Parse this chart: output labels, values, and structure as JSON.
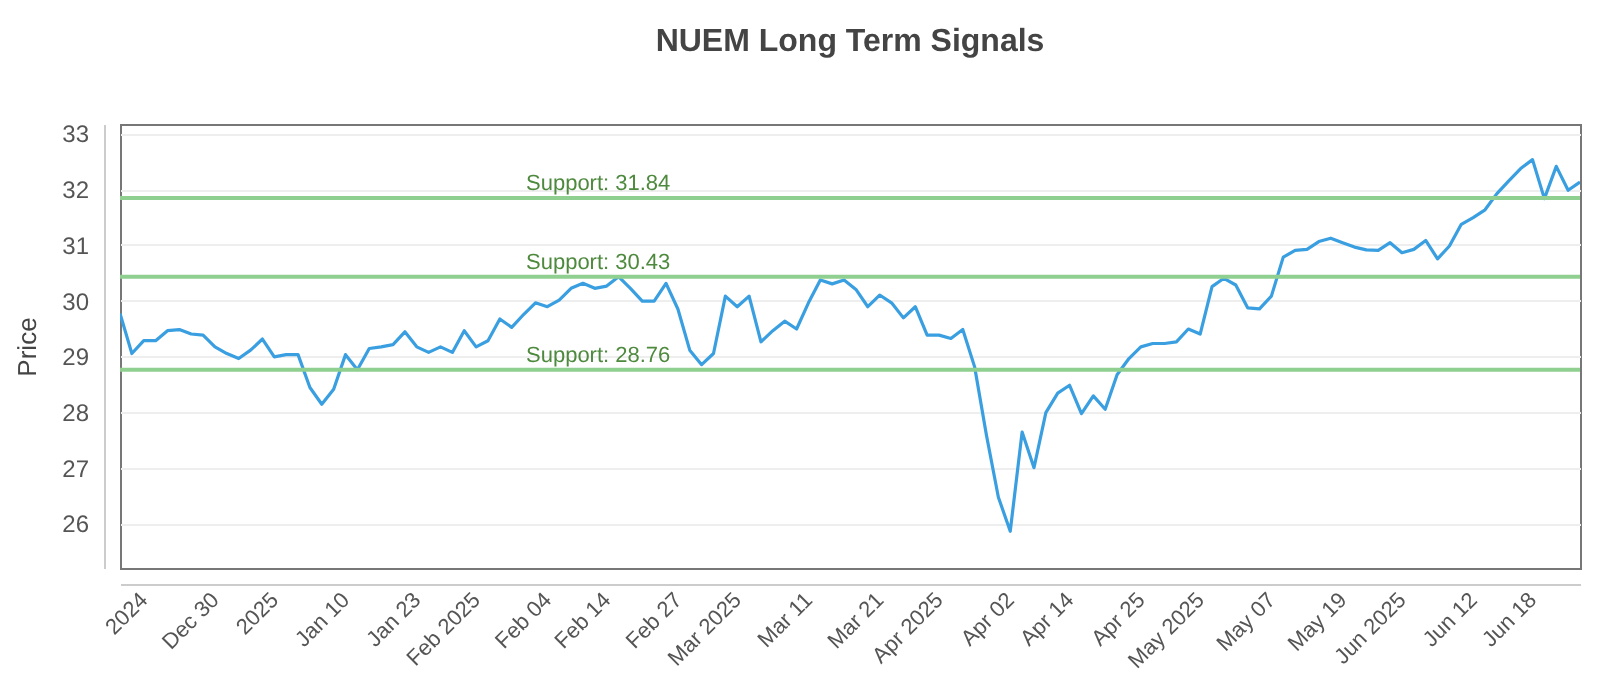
{
  "chart_data": {
    "type": "line",
    "title": "NUEM Long Term Signals",
    "ylabel": "Price",
    "categories": [
      null,
      null,
      "2024",
      null,
      null,
      null,
      null,
      null,
      "Dec 30",
      null,
      null,
      null,
      null,
      "2025",
      null,
      null,
      null,
      null,
      null,
      "Jan 10",
      null,
      null,
      null,
      null,
      null,
      "Jan 23",
      null,
      null,
      null,
      null,
      "Feb 2025",
      null,
      null,
      null,
      null,
      null,
      "Feb 04",
      null,
      null,
      null,
      null,
      "Feb 14",
      null,
      null,
      null,
      null,
      null,
      "Feb 27",
      null,
      null,
      null,
      null,
      "Mar 2025",
      null,
      null,
      null,
      null,
      null,
      "Mar 11",
      null,
      null,
      null,
      null,
      null,
      "Mar 21",
      null,
      null,
      null,
      null,
      "Apr 2025",
      null,
      null,
      null,
      null,
      null,
      "Apr 02",
      null,
      null,
      null,
      null,
      "Apr 14",
      null,
      null,
      null,
      null,
      null,
      "Apr 25",
      null,
      null,
      null,
      null,
      "May 2025",
      null,
      null,
      null,
      null,
      null,
      "May 07",
      null,
      null,
      null,
      null,
      null,
      "May 19",
      null,
      null,
      null,
      null,
      "Jun 2025",
      null,
      null,
      null,
      null,
      null,
      "Jun 12",
      null,
      null,
      null,
      null,
      "Jun 18",
      null,
      null,
      null,
      null
    ],
    "series": [
      {
        "color": "#3a9fe0",
        "values": [
          29.77,
          29.05,
          29.28,
          29.28,
          29.46,
          29.48,
          29.4,
          29.38,
          29.17,
          29.05,
          28.96,
          29.11,
          29.31,
          28.99,
          29.03,
          29.03,
          28.44,
          28.14,
          28.41,
          29.03,
          28.76,
          29.14,
          29.17,
          29.21,
          29.44,
          29.17,
          29.07,
          29.17,
          29.07,
          29.46,
          29.17,
          29.28,
          29.67,
          29.52,
          29.75,
          29.96,
          29.89,
          30.01,
          30.22,
          30.31,
          30.22,
          30.26,
          30.43,
          30.22,
          29.99,
          29.99,
          30.31,
          29.85,
          29.11,
          28.85,
          29.05,
          30.08,
          29.89,
          30.08,
          29.26,
          29.46,
          29.63,
          29.49,
          29.96,
          30.37,
          30.3,
          30.37,
          30.2,
          29.89,
          30.1,
          29.96,
          29.69,
          29.89,
          29.38,
          29.38,
          29.32,
          29.48,
          28.81,
          27.58,
          26.47,
          25.86,
          27.64,
          27.0,
          27.99,
          28.34,
          28.48,
          27.97,
          28.29,
          28.05,
          28.67,
          28.96,
          29.17,
          29.23,
          29.23,
          29.26,
          29.49,
          29.4,
          30.25,
          30.4,
          30.28,
          29.87,
          29.85,
          30.08,
          30.78,
          30.9,
          30.92,
          31.06,
          31.12,
          31.04,
          30.96,
          30.91,
          30.9,
          31.04,
          30.86,
          30.92,
          31.08,
          30.75,
          30.98,
          31.37,
          31.49,
          31.63,
          31.92,
          32.15,
          32.37,
          32.53,
          31.83,
          32.41,
          31.98,
          32.13
        ]
      }
    ],
    "ylim": [
      25.2,
      33.17
    ],
    "yticks": [
      26,
      27,
      28,
      29,
      30,
      31,
      32,
      33
    ],
    "grid": "y",
    "ref_lines": [
      {
        "axis": "y",
        "value": 31.84,
        "label": "Support: 31.84",
        "color": "#8fcf8f"
      },
      {
        "axis": "y",
        "value": 30.43,
        "label": "Support: 30.43",
        "color": "#8fcf8f"
      },
      {
        "axis": "y",
        "value": 28.76,
        "label": "Support: 28.76",
        "color": "#8fcf8f"
      }
    ]
  }
}
